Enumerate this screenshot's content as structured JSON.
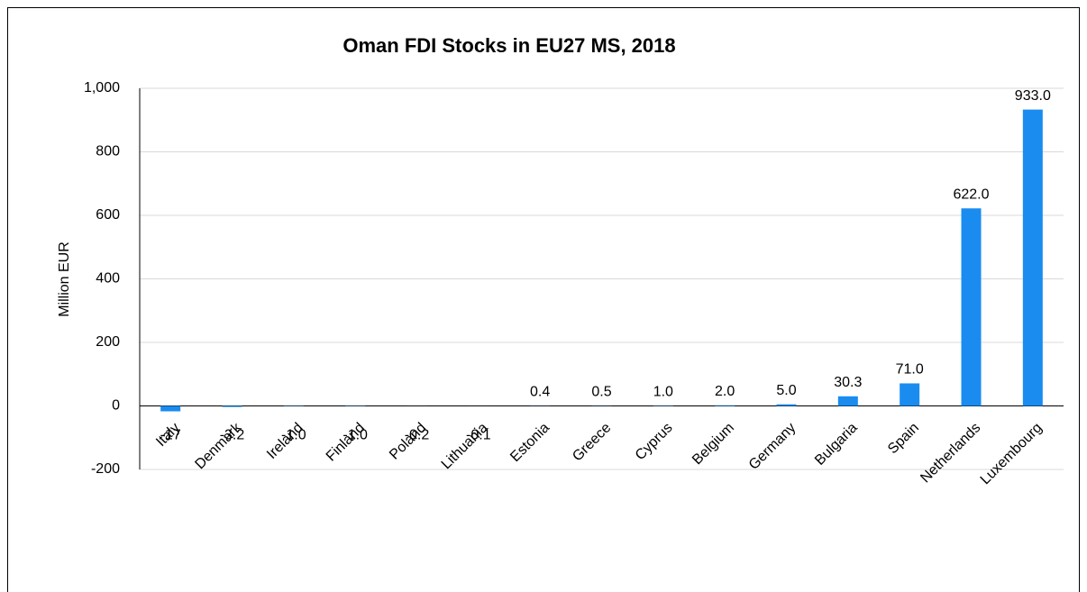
{
  "chart_data": {
    "type": "bar",
    "title": "Oman FDI Stocks in EU27 MS, 2018",
    "ylabel": "Million EUR",
    "categories": [
      "Italy",
      "Denmark",
      "Ireland",
      "Finland",
      "Poland",
      "Lithuania",
      "Estonia",
      "Greece",
      "Cyprus",
      "Belgium",
      "Germany",
      "Bulgaria",
      "Spain",
      "Netherlands",
      "Luxembourg"
    ],
    "values": [
      -17,
      -3.2,
      -1.0,
      -1.0,
      -0.2,
      -0.1,
      0.4,
      0.5,
      1.0,
      2.0,
      5.0,
      30.3,
      71.0,
      622.0,
      933.0
    ],
    "value_labels": [
      "-17",
      "-3.2",
      "-1.0",
      "-1.0",
      "-0.2",
      "-0.1",
      "0.4",
      "0.5",
      "1.0",
      "2.0",
      "5.0",
      "30.3",
      "71.0",
      "622.0",
      "933.0"
    ],
    "color": "#1a8cf0",
    "ylim": [
      -200,
      1000
    ],
    "yticks": [
      -200,
      0,
      200,
      400,
      600,
      800,
      {
        "value": 1000,
        "label": "1,000"
      }
    ],
    "grid": true
  }
}
